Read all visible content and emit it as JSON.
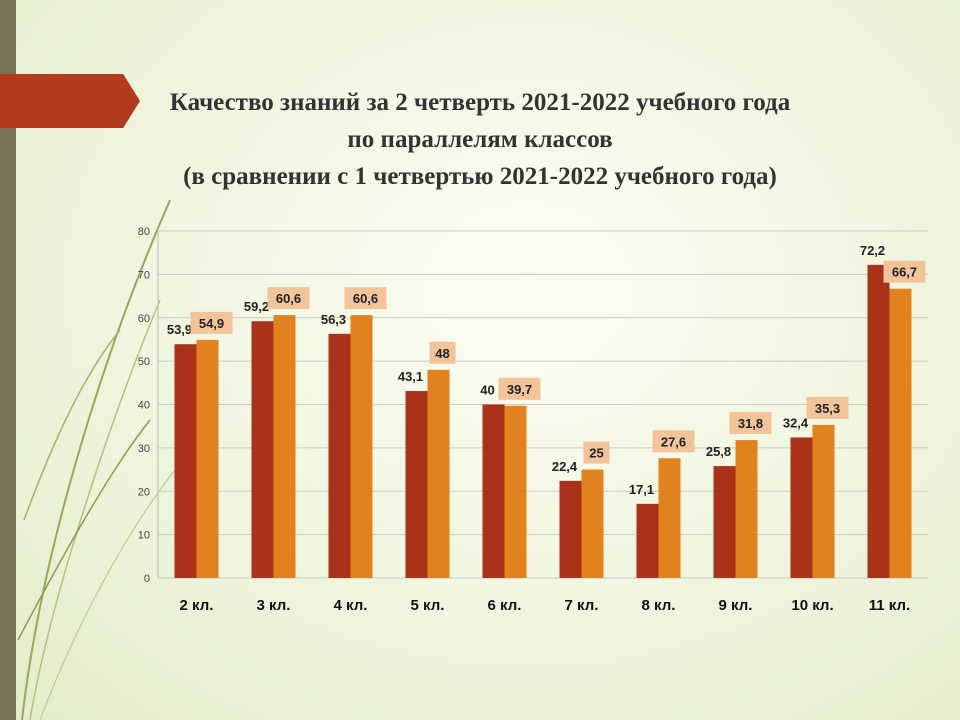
{
  "slide": {
    "title_lines": [
      "Качество знаний за 2 четверть 2021-2022 учебного года",
      "по параллелям классов",
      "(в сравнении с 1 четвертью 2021-2022 учебного года)"
    ]
  },
  "colors": {
    "series1": "#a8321a",
    "series2": "#e2821f",
    "label2_bg": "#f3c39a",
    "accent_arrow": "#b23a1f"
  },
  "chart_data": {
    "type": "bar",
    "categories": [
      "2 кл.",
      "3 кл.",
      "4 кл.",
      "5 кл.",
      "6 кл.",
      "7 кл.",
      "8 кл.",
      "9 кл.",
      "10 кл.",
      "11 кл."
    ],
    "series": [
      {
        "values": [
          53.9,
          59.2,
          56.3,
          43.1,
          40,
          22.4,
          17.1,
          25.8,
          32.4,
          72.2
        ],
        "labels": [
          "53,9",
          "59,2",
          "56,3",
          "43,1",
          "40",
          "22,4",
          "17,1",
          "25,8",
          "32,4",
          "72,2"
        ]
      },
      {
        "values": [
          54.9,
          60.6,
          60.6,
          48,
          39.7,
          25,
          27.6,
          31.8,
          35.3,
          66.7
        ],
        "labels": [
          "54,9",
          "60,6",
          "60,6",
          "48",
          "39,7",
          "25",
          "27,6",
          "31,8",
          "35,3",
          "66,7"
        ]
      }
    ],
    "ylim": [
      0,
      80
    ],
    "yticks": [
      0,
      10,
      20,
      30,
      40,
      50,
      60,
      70,
      80
    ],
    "grid": true,
    "legend": "none"
  }
}
